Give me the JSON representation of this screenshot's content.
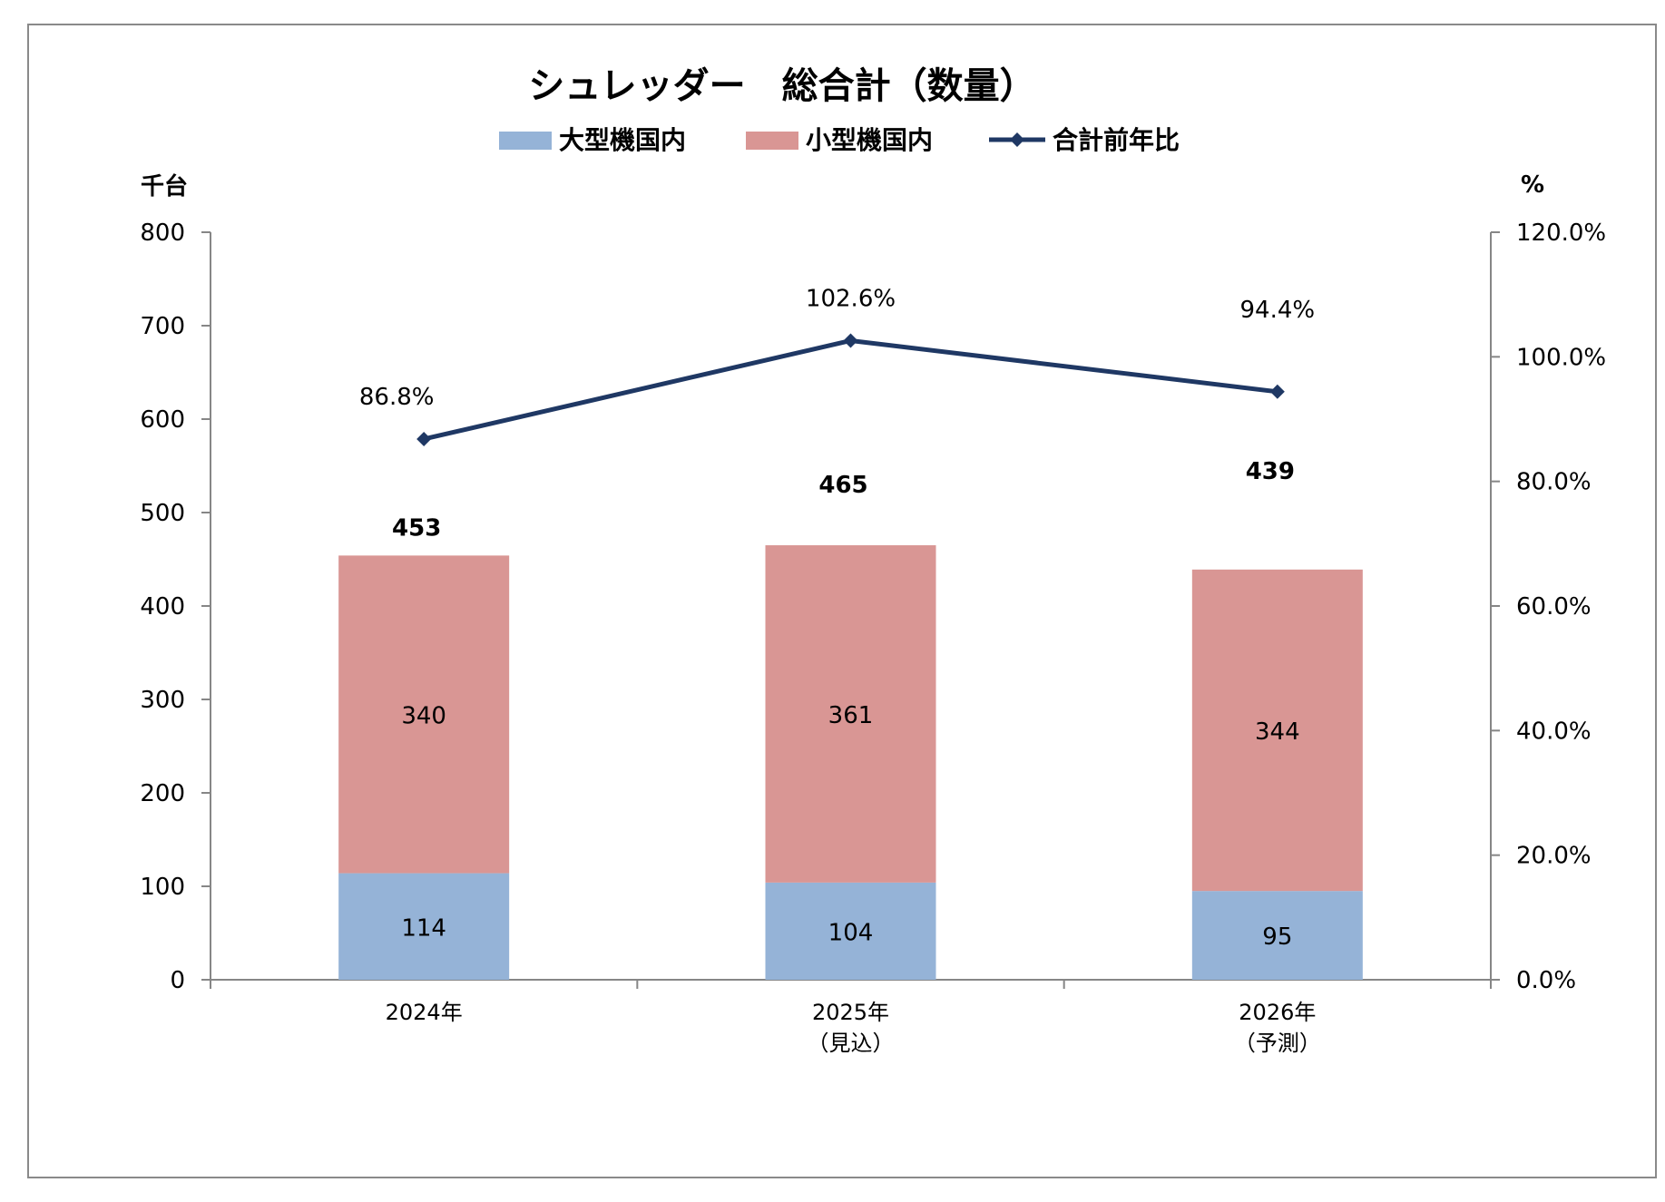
{
  "chart_data": {
    "type": "bar",
    "title": "シュレッダー　総合計（数量）",
    "left_unit": "千台",
    "right_unit": "%",
    "categories": [
      [
        "2024年"
      ],
      [
        "2025年",
        "（見込）"
      ],
      [
        "2026年",
        "（予測）"
      ]
    ],
    "ylim": [
      0,
      800
    ],
    "yticks": [
      "0",
      "100",
      "200",
      "300",
      "400",
      "500",
      "600",
      "700",
      "800"
    ],
    "y2lim": [
      0,
      120
    ],
    "y2ticks": [
      "0.0%",
      "20.0%",
      "40.0%",
      "60.0%",
      "80.0%",
      "100.0%",
      "120.0%"
    ],
    "stacked": true,
    "series": [
      {
        "name": "大型機国内",
        "type": "bar",
        "color": "#95b3d7",
        "values": [
          114,
          104,
          95
        ]
      },
      {
        "name": "小型機国内",
        "type": "bar",
        "color": "#d99694",
        "values": [
          340,
          361,
          344
        ]
      },
      {
        "name": "合計前年比",
        "type": "line",
        "axis": "right",
        "color": "#1f3864",
        "values": [
          86.8,
          102.6,
          94.4
        ],
        "labels": [
          "86.8%",
          "102.6%",
          "94.4%"
        ]
      }
    ],
    "totals": [
      "453",
      "465",
      "439"
    ],
    "legend_position": "top",
    "grid": false
  }
}
